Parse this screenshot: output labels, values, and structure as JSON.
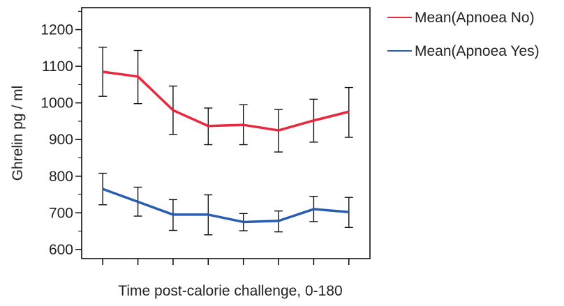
{
  "chart_data": {
    "type": "line",
    "title": "",
    "xlabel": "Time post-calorie challenge, 0-180",
    "ylabel": "Ghrelin pg / ml",
    "x": [
      1,
      2,
      3,
      4,
      5,
      6,
      7,
      8
    ],
    "xlim": [
      0.4,
      8.6
    ],
    "ylim": [
      575,
      1260
    ],
    "yticks": [
      600,
      700,
      800,
      900,
      1000,
      1100,
      1200
    ],
    "grid": false,
    "legend_position": "top-right, outside plot",
    "series": [
      {
        "name": "Mean(Apnoea No)",
        "color": "#e8283c",
        "values": [
          1085,
          1072,
          980,
          937,
          940,
          925,
          952,
          976
        ],
        "err_low": [
          1018,
          998,
          914,
          886,
          886,
          866,
          893,
          906
        ],
        "err_high": [
          1152,
          1143,
          1046,
          986,
          995,
          982,
          1010,
          1042
        ]
      },
      {
        "name": "Mean(Apnoea Yes)",
        "color": "#2a5db0",
        "values": [
          765,
          730,
          695,
          695,
          675,
          678,
          710,
          702
        ],
        "err_low": [
          722,
          691,
          652,
          640,
          651,
          648,
          676,
          660
        ],
        "err_high": [
          808,
          770,
          736,
          749,
          698,
          705,
          745,
          742
        ]
      }
    ]
  }
}
